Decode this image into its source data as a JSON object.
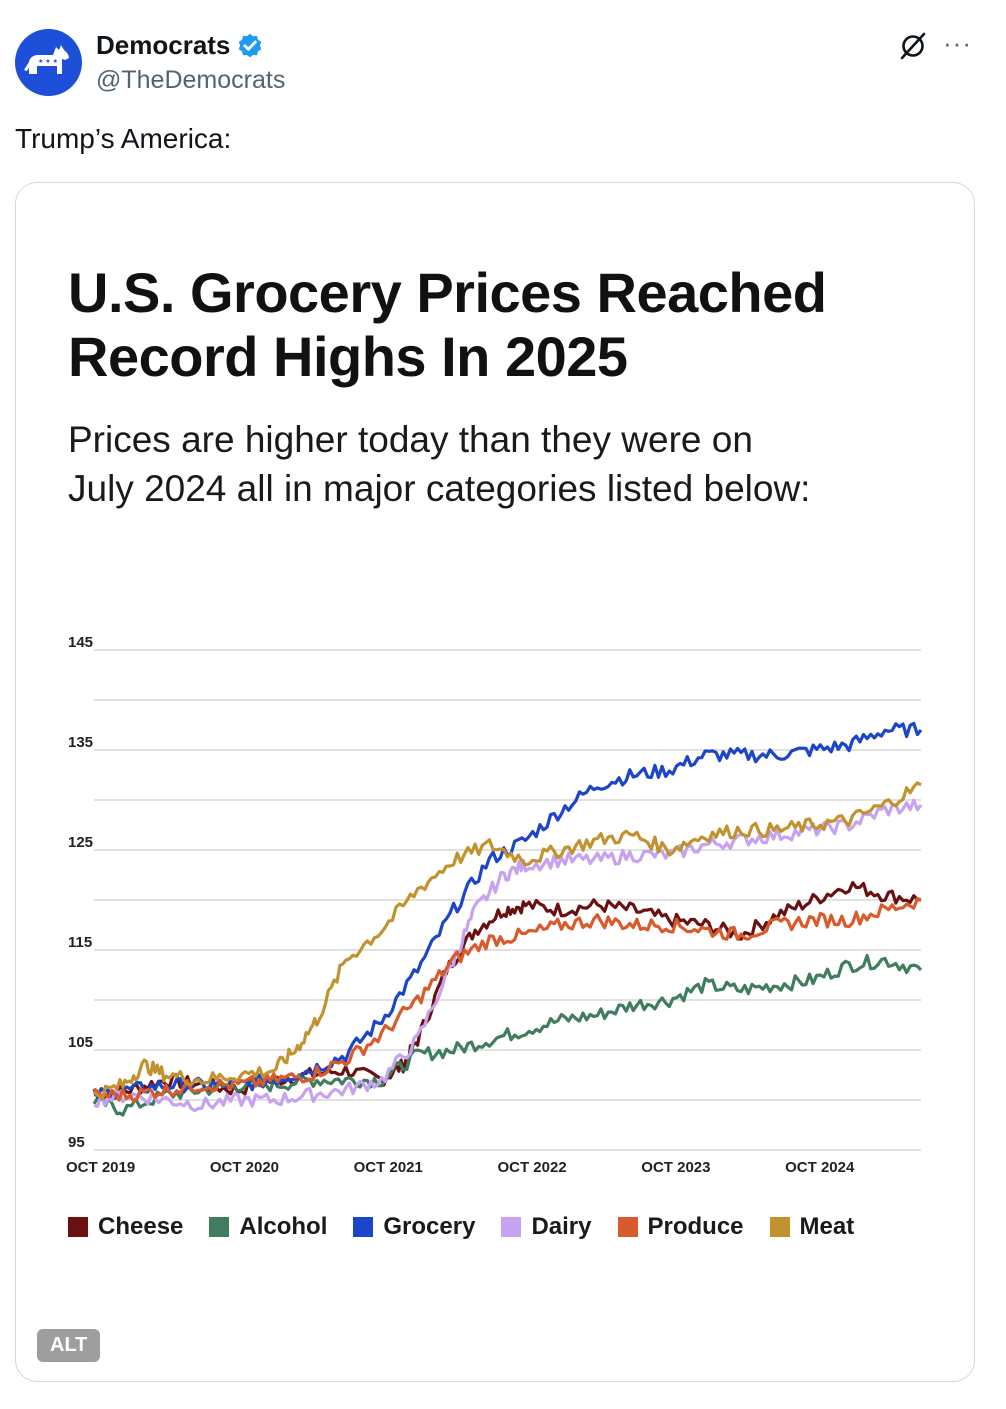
{
  "post": {
    "author_name": "Democrats",
    "author_handle": "@TheDemocrats",
    "text": "Trump’s America:",
    "alt_label": "ALT",
    "icons": {
      "avatar": "donkey-logo",
      "verified": "verified-badge-icon",
      "grok": "grok-icon",
      "more": "more-icon"
    },
    "more_glyph": "···"
  },
  "chart_data": {
    "type": "line",
    "title_line1": "U.S. Grocery Prices Reached",
    "title_line2": "Record Highs In 2025",
    "subtitle_line1": "Prices are higher today than they were on",
    "subtitle_line2": "July 2024 all in major categories listed below:",
    "ylim": [
      95,
      145
    ],
    "y_ticks": [
      95,
      105,
      115,
      125,
      135,
      145
    ],
    "y_tick_labels": [
      "95",
      "105",
      "115",
      "125",
      "135",
      "145"
    ],
    "x_range": [
      2019.75,
      2025.5
    ],
    "x_ticks": [
      2019.75,
      2020.75,
      2021.75,
      2022.75,
      2023.75,
      2024.75
    ],
    "x_tick_labels": [
      "OCT 2019",
      "OCT 2020",
      "OCT 2021",
      "OCT 2022",
      "OCT 2023",
      "OCT 2024"
    ],
    "series": [
      {
        "name": "Cheese",
        "color": "#6b1010",
        "x": [
          2019.75,
          2020.0,
          2020.25,
          2020.5,
          2020.75,
          2021.0,
          2021.25,
          2021.5,
          2021.75,
          2021.9,
          2022.0,
          2022.2,
          2022.4,
          2022.6,
          2022.75,
          2023.0,
          2023.25,
          2023.5,
          2023.75,
          2024.0,
          2024.25,
          2024.5,
          2024.75,
          2025.0,
          2025.25,
          2025.5
        ],
        "y": [
          100.5,
          101,
          102,
          101.5,
          101,
          102,
          102.5,
          103,
          102,
          103.5,
          106,
          113,
          117,
          119,
          119.5,
          119,
          119.5,
          119,
          118,
          117.5,
          116.5,
          118.5,
          120,
          121.5,
          120.5,
          120
        ]
      },
      {
        "name": "Alcohol",
        "color": "#3f7d5e",
        "x": [
          2019.75,
          2019.95,
          2020.25,
          2020.5,
          2020.75,
          2021.0,
          2021.25,
          2021.5,
          2021.75,
          2022.0,
          2022.25,
          2022.5,
          2022.75,
          2023.0,
          2023.25,
          2023.5,
          2023.75,
          2024.0,
          2024.25,
          2024.5,
          2024.75,
          2025.0,
          2025.25,
          2025.5
        ],
        "y": [
          100,
          99,
          100.5,
          101,
          101.5,
          101.5,
          102,
          102,
          102,
          104.5,
          105,
          106,
          107,
          108,
          108.5,
          109.5,
          110,
          111.5,
          111,
          111.5,
          112,
          113.5,
          114,
          113
        ]
      },
      {
        "name": "Grocery",
        "color": "#1c45c9",
        "x": [
          2019.75,
          2020.0,
          2020.25,
          2020.5,
          2020.75,
          2021.0,
          2021.25,
          2021.5,
          2021.75,
          2022.0,
          2022.25,
          2022.5,
          2022.75,
          2023.0,
          2023.25,
          2023.5,
          2023.75,
          2024.0,
          2024.25,
          2024.5,
          2024.75,
          2025.0,
          2025.25,
          2025.5
        ],
        "y": [
          100.5,
          101,
          101.5,
          101.5,
          101.5,
          102,
          103,
          104.5,
          108,
          113,
          119,
          124,
          126,
          129,
          131.5,
          132.5,
          133,
          134.5,
          134.5,
          134.5,
          135,
          135.5,
          137,
          137
        ]
      },
      {
        "name": "Dairy",
        "color": "#c6a2f0",
        "x": [
          2019.75,
          2020.0,
          2020.25,
          2020.5,
          2020.75,
          2021.0,
          2021.25,
          2021.5,
          2021.75,
          2022.0,
          2022.25,
          2022.4,
          2022.6,
          2022.75,
          2023.0,
          2023.25,
          2023.5,
          2023.75,
          2024.0,
          2024.25,
          2024.5,
          2024.75,
          2025.0,
          2025.25,
          2025.5
        ],
        "y": [
          100,
          100.5,
          100,
          99.5,
          100,
          100,
          100.5,
          101,
          102,
          106,
          114,
          119,
          122.5,
          123.5,
          124,
          124,
          124.5,
          124.5,
          125.5,
          126,
          126.5,
          127,
          127.5,
          129,
          129.5
        ]
      },
      {
        "name": "Produce",
        "color": "#d95a2b",
        "x": [
          2019.75,
          2020.0,
          2020.25,
          2020.5,
          2020.75,
          2021.0,
          2021.25,
          2021.5,
          2021.75,
          2022.0,
          2022.25,
          2022.5,
          2022.75,
          2023.0,
          2023.25,
          2023.5,
          2023.75,
          2024.0,
          2024.25,
          2024.5,
          2024.75,
          2025.0,
          2025.25,
          2025.5
        ],
        "y": [
          100.5,
          100.5,
          101,
          101.5,
          101.5,
          102,
          102.5,
          104,
          106.5,
          110,
          114,
          116,
          116.5,
          117.5,
          118,
          117.5,
          117.5,
          117,
          116.5,
          117.5,
          118,
          118,
          119,
          120
        ]
      },
      {
        "name": "Meat",
        "color": "#c2922e",
        "x": [
          2019.75,
          2019.95,
          2020.1,
          2020.25,
          2020.5,
          2020.75,
          2021.0,
          2021.15,
          2021.3,
          2021.5,
          2021.75,
          2022.0,
          2022.25,
          2022.5,
          2022.75,
          2023.0,
          2023.25,
          2023.5,
          2023.75,
          2024.0,
          2024.25,
          2024.5,
          2024.75,
          2025.0,
          2025.25,
          2025.5
        ],
        "y": [
          100.5,
          101.5,
          103.5,
          102.5,
          102,
          102.5,
          103,
          105,
          108,
          114,
          117,
          121,
          124,
          125.5,
          124,
          125,
          126,
          126.5,
          125,
          126.5,
          127,
          127,
          127.5,
          128,
          129.5,
          131.5
        ]
      }
    ]
  }
}
